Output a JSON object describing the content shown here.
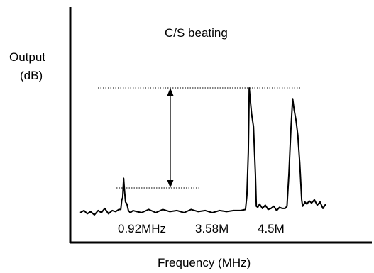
{
  "chart_data": {
    "type": "line",
    "title": "C/S beating",
    "ylabel_line1": "Output",
    "ylabel_line2": "(dB)",
    "xlabel": "Frequency (MHz)",
    "grid": false,
    "legend": "none",
    "peak_labels": [
      "0.92MHz",
      "3.58M",
      "4.5M"
    ],
    "peaks_mhz": [
      0.92,
      3.58,
      4.5
    ],
    "series": [
      {
        "x": [
          0.0,
          0.08,
          0.15,
          0.22,
          0.3,
          0.38,
          0.45,
          0.52,
          0.6,
          0.68,
          0.75,
          0.82,
          0.86,
          0.88,
          0.9,
          0.92,
          0.94,
          0.96,
          0.99,
          1.02,
          1.06,
          1.12,
          1.2,
          1.3,
          1.45,
          1.6,
          1.75,
          1.9,
          2.05,
          2.2,
          2.35,
          2.5,
          2.65,
          2.8,
          2.95,
          3.1,
          3.25,
          3.4,
          3.5,
          3.53,
          3.56,
          3.58,
          3.6,
          3.63,
          3.67,
          3.71,
          3.73,
          3.76,
          3.8,
          3.86,
          3.92,
          3.98,
          4.04,
          4.1,
          4.16,
          4.22,
          4.28,
          4.34,
          4.38,
          4.42,
          4.46,
          4.5,
          4.53,
          4.57,
          4.61,
          4.65,
          4.69,
          4.71,
          4.73,
          4.76,
          4.8,
          4.85,
          4.9,
          4.96,
          5.02,
          5.08,
          5.14,
          5.2
        ],
        "y": [
          2,
          3,
          1.5,
          2.5,
          1,
          3,
          2,
          4,
          1.5,
          3,
          2.5,
          3.5,
          3.5,
          8,
          9,
          18,
          12,
          7,
          6,
          3,
          2,
          3,
          2.5,
          2,
          3.5,
          2,
          3.5,
          2.5,
          3,
          2,
          3.5,
          2.5,
          3,
          2,
          3,
          2.5,
          3,
          3,
          3.5,
          10,
          30,
          60,
          55,
          48,
          42,
          20,
          5,
          4.5,
          6,
          4,
          5.5,
          3.5,
          4,
          5,
          3,
          4.5,
          4,
          4,
          5,
          20,
          40,
          55,
          50,
          45,
          38,
          25,
          8,
          5,
          5.5,
          7,
          6,
          7.5,
          6.5,
          8,
          5.5,
          7,
          4,
          6
        ]
      }
    ],
    "annotations": [
      {
        "type": "dotted-reference-line",
        "level": "peak-top"
      },
      {
        "type": "dotted-reference-line",
        "level": "0.92MHz-peak-top"
      },
      {
        "type": "double-arrow",
        "between": "dotted-reference-lines"
      }
    ]
  }
}
